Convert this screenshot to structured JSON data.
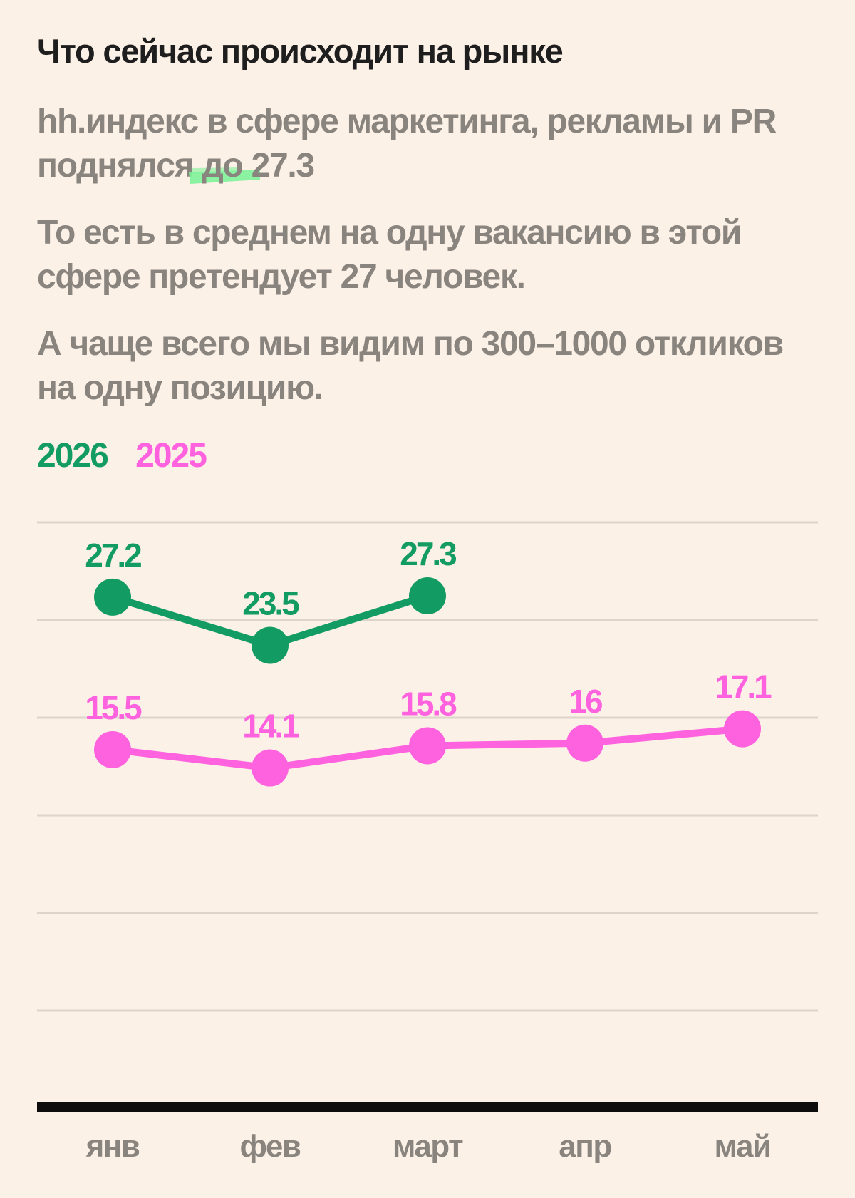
{
  "heading": "Что сейчас происходит на рынке",
  "paragraph1": {
    "text_before": "hh.индекс в сфере маркетинга, рекламы и PR поднялся",
    "highlighted": "до 27.3"
  },
  "paragraph2": "То есть в среднем на одну вакансию в этой сфере претендует 27 человек.",
  "paragraph3": "А чаще всего мы видим по 300–1000 откликов на одну позицию.",
  "colors": {
    "background": "#FCF1E7",
    "series_2026": "#129C63",
    "series_2025": "#FF62DE",
    "highlight": "#7EF29A",
    "gridline": "#DDD4CC",
    "baseline": "#0D0D0D",
    "muted_text": "#8A847F"
  },
  "chart_data": {
    "type": "line",
    "categories": [
      "янв",
      "фев",
      "март",
      "апр",
      "май"
    ],
    "series": [
      {
        "name": "2026",
        "values": [
          27.2,
          23.5,
          27.3,
          null,
          null
        ],
        "labels": [
          "27.2",
          "23.5",
          "27.3",
          null,
          null
        ]
      },
      {
        "name": "2025",
        "values": [
          15.5,
          14.1,
          15.8,
          16,
          17.1
        ],
        "labels": [
          "15.5",
          "14.1",
          "15.8",
          "16",
          "17.1"
        ]
      }
    ],
    "grid": true,
    "legend": "top-left"
  }
}
